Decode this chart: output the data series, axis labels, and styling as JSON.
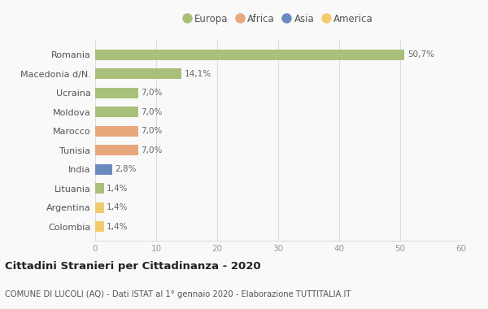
{
  "categories": [
    "Romania",
    "Macedonia d/N.",
    "Ucraina",
    "Moldova",
    "Marocco",
    "Tunisia",
    "India",
    "Lituania",
    "Argentina",
    "Colombia"
  ],
  "values": [
    50.7,
    14.1,
    7.0,
    7.0,
    7.0,
    7.0,
    2.8,
    1.4,
    1.4,
    1.4
  ],
  "labels": [
    "50,7%",
    "14,1%",
    "7,0%",
    "7,0%",
    "7,0%",
    "7,0%",
    "2,8%",
    "1,4%",
    "1,4%",
    "1,4%"
  ],
  "colors": [
    "#a8c07a",
    "#a8c07a",
    "#a8c07a",
    "#a8c07a",
    "#e8a87c",
    "#e8a87c",
    "#6b8bbf",
    "#a8c07a",
    "#f0cc6e",
    "#f0cc6e"
  ],
  "legend_labels": [
    "Europa",
    "Africa",
    "Asia",
    "America"
  ],
  "legend_colors": [
    "#a8c07a",
    "#e8a87c",
    "#6b8bbf",
    "#f0cc6e"
  ],
  "xlim": [
    0,
    60
  ],
  "xticks": [
    0,
    10,
    20,
    30,
    40,
    50,
    60
  ],
  "title": "Cittadini Stranieri per Cittadinanza - 2020",
  "subtitle": "COMUNE DI LUCOLI (AQ) - Dati ISTAT al 1° gennaio 2020 - Elaborazione TUTTITALIA.IT",
  "bg_color": "#f9f9f9",
  "grid_color": "#dddddd",
  "bar_height": 0.55
}
